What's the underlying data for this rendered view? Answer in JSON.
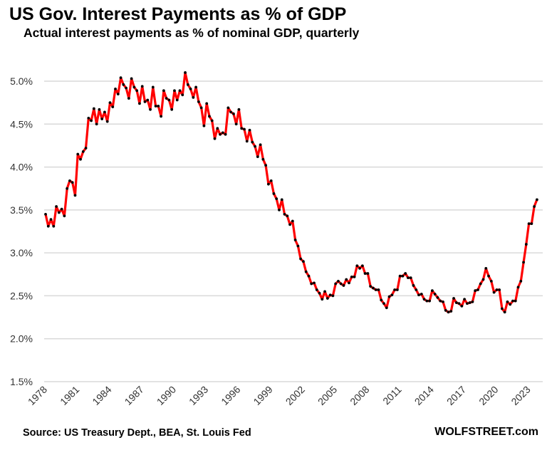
{
  "chart_data": {
    "type": "line",
    "title": "US Gov. Interest Payments as % of GDP",
    "subtitle": "Actual interest payments as % of nominal GDP, quarterly",
    "source": "Source: US Treasury Dept., BEA, St. Louis Fed",
    "brand": "WOLFSTREET.com",
    "xlabel": "",
    "ylabel": "",
    "x_start": "1978 Q1",
    "x_end": "2023 Q4",
    "frequency": "quarterly",
    "xticks": [
      "1978",
      "1981",
      "1984",
      "1987",
      "1990",
      "1993",
      "1996",
      "1999",
      "2002",
      "2005",
      "2008",
      "2011",
      "2014",
      "2017",
      "2020",
      "2023"
    ],
    "yticks": [
      "1.5%",
      "2.0%",
      "2.5%",
      "3.0%",
      "3.5%",
      "4.0%",
      "4.5%",
      "5.0%"
    ],
    "ytick_values": [
      1.5,
      2.0,
      2.5,
      3.0,
      3.5,
      4.0,
      4.5,
      5.0
    ],
    "ylim": [
      1.5,
      5.0
    ],
    "grid": "horizontal",
    "line_color": "#ff0000",
    "marker_color": "#000000",
    "grid_color": "#d9d9d9",
    "values": [
      3.45,
      3.31,
      3.39,
      3.31,
      3.54,
      3.47,
      3.51,
      3.43,
      3.75,
      3.84,
      3.82,
      3.67,
      4.15,
      4.09,
      4.18,
      4.22,
      4.57,
      4.54,
      4.68,
      4.5,
      4.67,
      4.56,
      4.64,
      4.53,
      4.75,
      4.7,
      4.91,
      4.85,
      5.04,
      4.96,
      4.92,
      4.8,
      5.03,
      4.93,
      4.89,
      4.74,
      4.94,
      4.76,
      4.78,
      4.67,
      4.93,
      4.71,
      4.71,
      4.59,
      4.89,
      4.8,
      4.78,
      4.67,
      4.89,
      4.78,
      4.89,
      4.84,
      5.1,
      4.96,
      4.91,
      4.81,
      4.93,
      4.76,
      4.69,
      4.48,
      4.74,
      4.59,
      4.54,
      4.33,
      4.45,
      4.38,
      4.4,
      4.38,
      4.69,
      4.64,
      4.62,
      4.5,
      4.67,
      4.45,
      4.44,
      4.3,
      4.43,
      4.29,
      4.24,
      4.12,
      4.26,
      4.09,
      4.02,
      3.8,
      3.84,
      3.69,
      3.63,
      3.5,
      3.62,
      3.45,
      3.43,
      3.33,
      3.37,
      3.15,
      3.08,
      2.93,
      2.9,
      2.78,
      2.73,
      2.64,
      2.65,
      2.57,
      2.53,
      2.46,
      2.55,
      2.47,
      2.51,
      2.5,
      2.64,
      2.67,
      2.64,
      2.62,
      2.69,
      2.65,
      2.72,
      2.72,
      2.85,
      2.82,
      2.85,
      2.76,
      2.76,
      2.61,
      2.59,
      2.57,
      2.57,
      2.45,
      2.41,
      2.36,
      2.49,
      2.51,
      2.57,
      2.57,
      2.73,
      2.73,
      2.76,
      2.71,
      2.71,
      2.62,
      2.57,
      2.51,
      2.52,
      2.46,
      2.44,
      2.44,
      2.56,
      2.52,
      2.48,
      2.44,
      2.43,
      2.33,
      2.31,
      2.32,
      2.47,
      2.42,
      2.41,
      2.38,
      2.46,
      2.41,
      2.42,
      2.43,
      2.56,
      2.57,
      2.64,
      2.69,
      2.82,
      2.73,
      2.67,
      2.54,
      2.57,
      2.57,
      2.35,
      2.31,
      2.43,
      2.4,
      2.44,
      2.44,
      2.6,
      2.67,
      2.89,
      3.1,
      3.34,
      3.34,
      3.54,
      3.62
    ]
  }
}
